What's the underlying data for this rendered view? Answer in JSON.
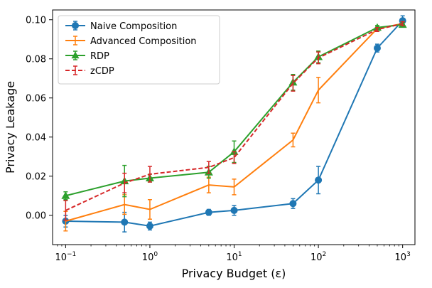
{
  "chart_data": {
    "type": "line",
    "xlabel": "Privacy Budget (ε)",
    "ylabel": "Privacy Leakage",
    "xscale": "log",
    "xlim": [
      0.07,
      1400
    ],
    "ylim": [
      -0.015,
      0.105
    ],
    "xticks": [
      {
        "value": 0.1,
        "base": "10",
        "exp": "−1"
      },
      {
        "value": 1,
        "base": "10",
        "exp": "0"
      },
      {
        "value": 10,
        "base": "10",
        "exp": "1"
      },
      {
        "value": 100,
        "base": "10",
        "exp": "2"
      },
      {
        "value": 1000,
        "base": "10",
        "exp": "3"
      }
    ],
    "yticks": [
      {
        "value": 0.0,
        "label": "0.00"
      },
      {
        "value": 0.02,
        "label": "0.02"
      },
      {
        "value": 0.04,
        "label": "0.04"
      },
      {
        "value": 0.06,
        "label": "0.06"
      },
      {
        "value": 0.08,
        "label": "0.08"
      },
      {
        "value": 0.1,
        "label": "0.10"
      }
    ],
    "legend_position": "top-left",
    "grid": false,
    "x": [
      0.1,
      0.5,
      1,
      5,
      10,
      50,
      100,
      500,
      1000
    ],
    "series": [
      {
        "name": "Naive Composition",
        "color": "#1f77b4",
        "marker": "circle",
        "dashed": false,
        "values": [
          -0.003,
          -0.0035,
          -0.0055,
          0.0015,
          0.0025,
          0.006,
          0.018,
          0.0855,
          0.0995
        ],
        "errors": [
          0.003,
          0.005,
          0.002,
          0.0015,
          0.0025,
          0.0025,
          0.007,
          0.002,
          0.0025
        ]
      },
      {
        "name": "Advanced Composition",
        "color": "#ff7f0e",
        "marker": "none",
        "dashed": false,
        "values": [
          -0.003,
          0.0055,
          0.003,
          0.0155,
          0.0145,
          0.0385,
          0.064,
          0.0955,
          0.098
        ],
        "errors": [
          0.005,
          0.005,
          0.005,
          0.004,
          0.004,
          0.0035,
          0.0065,
          0.0015,
          0.001
        ]
      },
      {
        "name": "RDP",
        "color": "#2ca02c",
        "marker": "triangle",
        "dashed": false,
        "values": [
          0.01,
          0.0175,
          0.019,
          0.022,
          0.0325,
          0.068,
          0.081,
          0.096,
          0.0975
        ],
        "errors": [
          0.002,
          0.008,
          0.002,
          0.003,
          0.0055,
          0.004,
          0.003,
          0.001,
          0.001
        ]
      },
      {
        "name": "zCDP",
        "color": "#d62728",
        "marker": "none",
        "dashed": true,
        "values": [
          0.0025,
          0.0165,
          0.021,
          0.0245,
          0.0295,
          0.0675,
          0.0805,
          0.095,
          0.098
        ],
        "errors": [
          0.005,
          0.005,
          0.004,
          0.003,
          0.003,
          0.004,
          0.003,
          0.001,
          0.001
        ]
      }
    ]
  }
}
